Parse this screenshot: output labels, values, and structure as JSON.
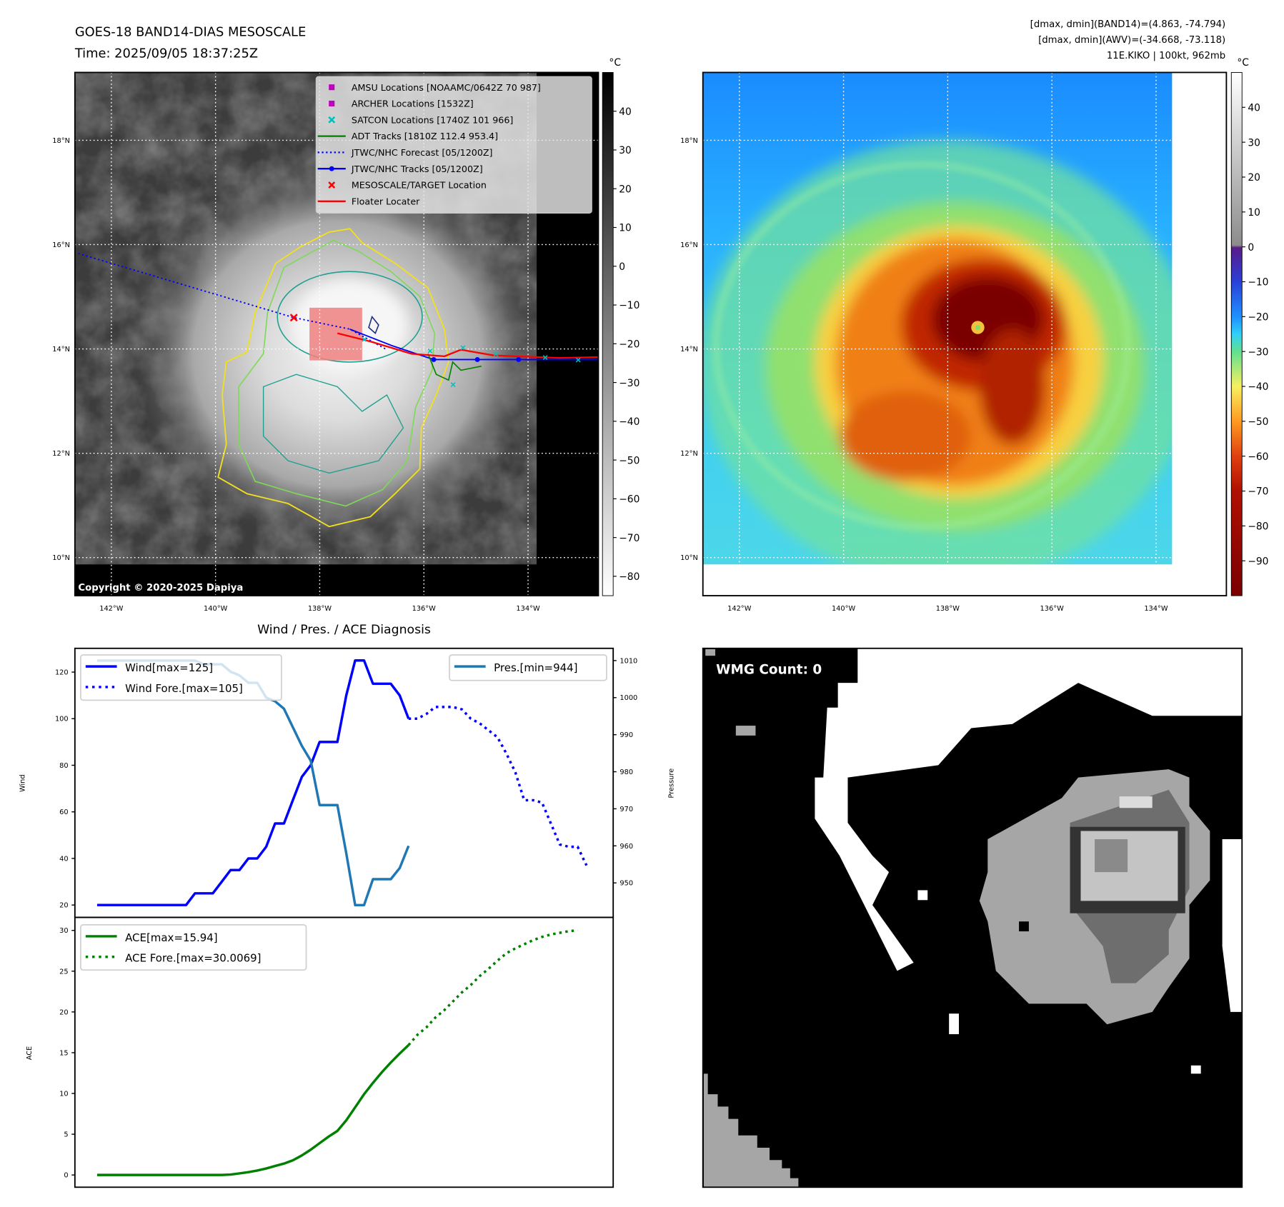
{
  "header": {
    "title": "GOES-18 BAND14-DIAS MESOSCALE",
    "time": "Time: 2025/09/05 18:37:25Z",
    "stats": [
      "[dmax, dmin](BAND14)=(4.863, -74.794)",
      "[dmax, dmin](AWV)=(-34.668, -73.118)",
      "11E.KIKO | 100kt, 962mb"
    ]
  },
  "maps": {
    "extent_lon": [
      -142.7,
      -132.65
    ],
    "extent_lat": [
      9.27,
      19.3
    ],
    "lon_ticks": [
      {
        "value": -142,
        "label": "142°W"
      },
      {
        "value": -140,
        "label": "140°W"
      },
      {
        "value": -138,
        "label": "138°W"
      },
      {
        "value": -136,
        "label": "136°W"
      },
      {
        "value": -134,
        "label": "134°W"
      }
    ],
    "lat_ticks": [
      {
        "value": 18,
        "label": "18°N"
      },
      {
        "value": 16,
        "label": "16°N"
      },
      {
        "value": 14,
        "label": "14°N"
      },
      {
        "value": 12,
        "label": "12°N"
      },
      {
        "value": 10,
        "label": "10°N"
      }
    ]
  },
  "ir_map": {
    "legend": [
      {
        "label": "AMSU Locations [NOAAMC/0642Z 70 987]",
        "marker": "square",
        "color": "#bf00bf"
      },
      {
        "label": "ARCHER Locations [1532Z]",
        "marker": "square",
        "color": "#bf00bf"
      },
      {
        "label": "SATCON Locations [1740Z 101 966]",
        "marker": "x",
        "color": "#00bfbf"
      },
      {
        "label": "ADT Tracks [1810Z 112.4 953.4]",
        "marker": "line",
        "color": "#008000"
      },
      {
        "label": "JTWC/NHC Forecast [05/1200Z]",
        "marker": "dotted",
        "color": "#0000ff"
      },
      {
        "label": "JTWC/NHC Tracks [05/1200Z]",
        "marker": "line-dot",
        "color": "#0000ff"
      },
      {
        "label": "MESOSCALE/TARGET Location",
        "marker": "x",
        "color": "#ff0000"
      },
      {
        "label": "Floater Locater",
        "marker": "line",
        "color": "#ff0000"
      }
    ],
    "copyright": "Copyright © 2020-2025 Dapiya",
    "colorbar": {
      "unit": "°C",
      "range": [
        -85,
        50
      ],
      "ticks": [
        {
          "v": 40,
          "l": "40"
        },
        {
          "v": 30,
          "l": "30"
        },
        {
          "v": 20,
          "l": "20"
        },
        {
          "v": 10,
          "l": "10"
        },
        {
          "v": 0,
          "l": "0"
        },
        {
          "v": -10,
          "l": "−10"
        },
        {
          "v": -20,
          "l": "−20"
        },
        {
          "v": -30,
          "l": "−30"
        },
        {
          "v": -40,
          "l": "−40"
        },
        {
          "v": -50,
          "l": "−50"
        },
        {
          "v": -60,
          "l": "−60"
        },
        {
          "v": -70,
          "l": "−70"
        },
        {
          "v": -80,
          "l": "−80"
        }
      ]
    }
  },
  "awv_map": {
    "colorbar": {
      "unit": "°C",
      "range": [
        -100,
        50
      ],
      "ticks": [
        {
          "v": 40,
          "l": "40"
        },
        {
          "v": 30,
          "l": "30"
        },
        {
          "v": 20,
          "l": "20"
        },
        {
          "v": 10,
          "l": "10"
        },
        {
          "v": 0,
          "l": "0"
        },
        {
          "v": -10,
          "l": "−10"
        },
        {
          "v": -20,
          "l": "−20"
        },
        {
          "v": -30,
          "l": "−30"
        },
        {
          "v": -40,
          "l": "−40"
        },
        {
          "v": -50,
          "l": "−50"
        },
        {
          "v": -60,
          "l": "−60"
        },
        {
          "v": -70,
          "l": "−70"
        },
        {
          "v": -80,
          "l": "−80"
        },
        {
          "v": -90,
          "l": "−90"
        }
      ]
    }
  },
  "chart_data": [
    {
      "type": "line",
      "title": "Wind / Pres. / ACE Diagnosis",
      "ylabel": "Wind",
      "y2label": "Pressure",
      "xlim": [
        -2.5,
        58
      ],
      "ylim": [
        14.7,
        130.2
      ],
      "y2lim": [
        940.7,
        1013.3
      ],
      "yticks": [
        20,
        40,
        60,
        80,
        100,
        120
      ],
      "y2ticks": [
        950,
        960,
        970,
        980,
        990,
        1000,
        1010
      ],
      "legend_left": [
        "Wind[max=125]",
        "Wind Fore.[max=105]"
      ],
      "legend_right": [
        "Pres.[min=944]"
      ],
      "series": [
        {
          "name": "Wind[max=125]",
          "axis": "y",
          "color": "#0000ff",
          "style": "solid",
          "start": 0,
          "values": [
            20,
            20,
            20,
            20,
            20,
            20,
            20,
            20,
            20,
            20,
            20,
            25,
            25,
            25,
            30,
            35,
            35,
            40,
            40,
            45,
            55,
            55,
            65,
            75,
            80,
            90,
            90,
            90,
            110,
            125,
            125,
            115,
            115,
            115,
            110,
            100
          ]
        },
        {
          "name": "Wind Fore.[max=105]",
          "axis": "y",
          "color": "#0000ff",
          "style": "dotted",
          "start": 35,
          "values": [
            100,
            100,
            102,
            105,
            105,
            105,
            104,
            100,
            98,
            95,
            92,
            85,
            77,
            65,
            65,
            64,
            55,
            46,
            45,
            45,
            37
          ]
        },
        {
          "name": "Pres.[min=944]",
          "axis": "y2",
          "color": "#1f77b4",
          "style": "solid",
          "start": 0,
          "values": [
            1010,
            1010,
            1010,
            1010,
            1010,
            1010,
            1010,
            1010,
            1010,
            1010,
            1010,
            1010,
            1009,
            1009,
            1009,
            1007,
            1006,
            1004,
            1004,
            1000,
            999,
            997,
            992,
            987,
            983,
            971,
            971,
            971,
            958,
            944,
            944,
            951,
            951,
            951,
            954,
            960
          ]
        }
      ]
    },
    {
      "type": "line",
      "ylabel": "ACE",
      "xlim": [
        -2.5,
        58
      ],
      "ylim": [
        -1.5,
        31.6
      ],
      "yticks": [
        0,
        5,
        10,
        15,
        20,
        25,
        30
      ],
      "legend_left": [
        "ACE[max=15.94]",
        "ACE Fore.[max=30.0069]"
      ],
      "series": [
        {
          "name": "ACE[max=15.94]",
          "axis": "y",
          "color": "#008000",
          "style": "solid",
          "start": 0,
          "values": [
            0,
            0,
            0,
            0,
            0,
            0,
            0,
            0,
            0,
            0,
            0,
            0,
            0,
            0,
            0,
            0.05,
            0.2,
            0.35,
            0.55,
            0.8,
            1.1,
            1.4,
            1.8,
            2.4,
            3.1,
            3.9,
            4.7,
            5.4,
            6.7,
            8.3,
            9.9,
            11.3,
            12.6,
            13.8,
            14.9,
            15.94
          ]
        },
        {
          "name": "ACE Fore.[max=30.0069]",
          "axis": "y",
          "color": "#008000",
          "style": "dotted",
          "start": 35,
          "values": [
            15.94,
            17.2,
            18.1,
            19.3,
            20.2,
            21.3,
            22.4,
            23.3,
            24.4,
            25.3,
            26.3,
            27.2,
            27.8,
            28.3,
            28.8,
            29.2,
            29.5,
            29.7,
            29.9,
            30.0069
          ]
        }
      ]
    }
  ],
  "wmg": {
    "label": "WMG Count: 0"
  }
}
